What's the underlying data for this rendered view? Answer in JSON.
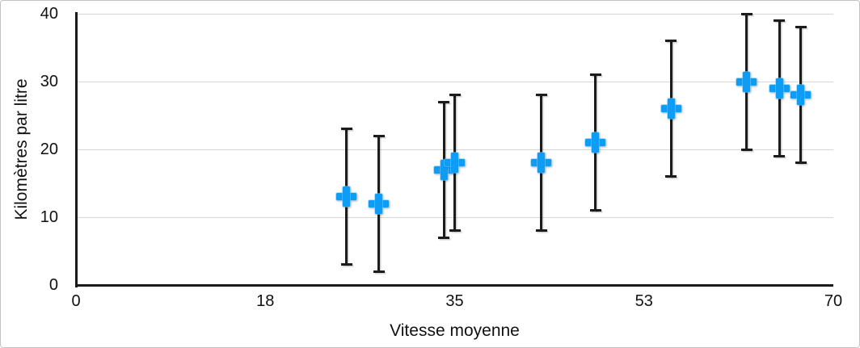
{
  "chart_data": {
    "type": "scatter",
    "title": "",
    "xlabel": "Vitesse moyenne",
    "ylabel": "Kilomètres par litre",
    "xlim": [
      0,
      70
    ],
    "ylim": [
      0,
      40
    ],
    "grid": "horizontal gridlines at each y tick",
    "legend": "none",
    "xticks": {
      "positions": [
        0,
        17.5,
        35,
        52.5,
        70
      ],
      "labels": [
        "0",
        "18",
        "35",
        "53",
        "70"
      ]
    },
    "yticks": {
      "positions": [
        0,
        10,
        20,
        30,
        40
      ],
      "labels": [
        "0",
        "10",
        "20",
        "30",
        "40"
      ]
    },
    "points": [
      {
        "x": 25,
        "y": 13,
        "low": 3,
        "high": 23
      },
      {
        "x": 28,
        "y": 12,
        "low": 2,
        "high": 22
      },
      {
        "x": 34,
        "y": 17,
        "low": 7,
        "high": 27
      },
      {
        "x": 35,
        "y": 18,
        "low": 8,
        "high": 28
      },
      {
        "x": 43,
        "y": 18,
        "low": 8,
        "high": 28
      },
      {
        "x": 48,
        "y": 21,
        "low": 11,
        "high": 31
      },
      {
        "x": 55,
        "y": 26,
        "low": 16,
        "high": 36
      },
      {
        "x": 62,
        "y": 30,
        "low": 20,
        "high": 40
      },
      {
        "x": 65,
        "y": 29,
        "low": 19,
        "high": 39
      },
      {
        "x": 67,
        "y": 28,
        "low": 18,
        "high": 38
      }
    ],
    "colors": {
      "marker": "#0f9cf4",
      "error_bar": "#1c1c1c",
      "axis": "#1a1a1a",
      "gridline": "#d7d7d7",
      "frame_border": "#c2c2c2",
      "background": "#ffffff"
    }
  }
}
